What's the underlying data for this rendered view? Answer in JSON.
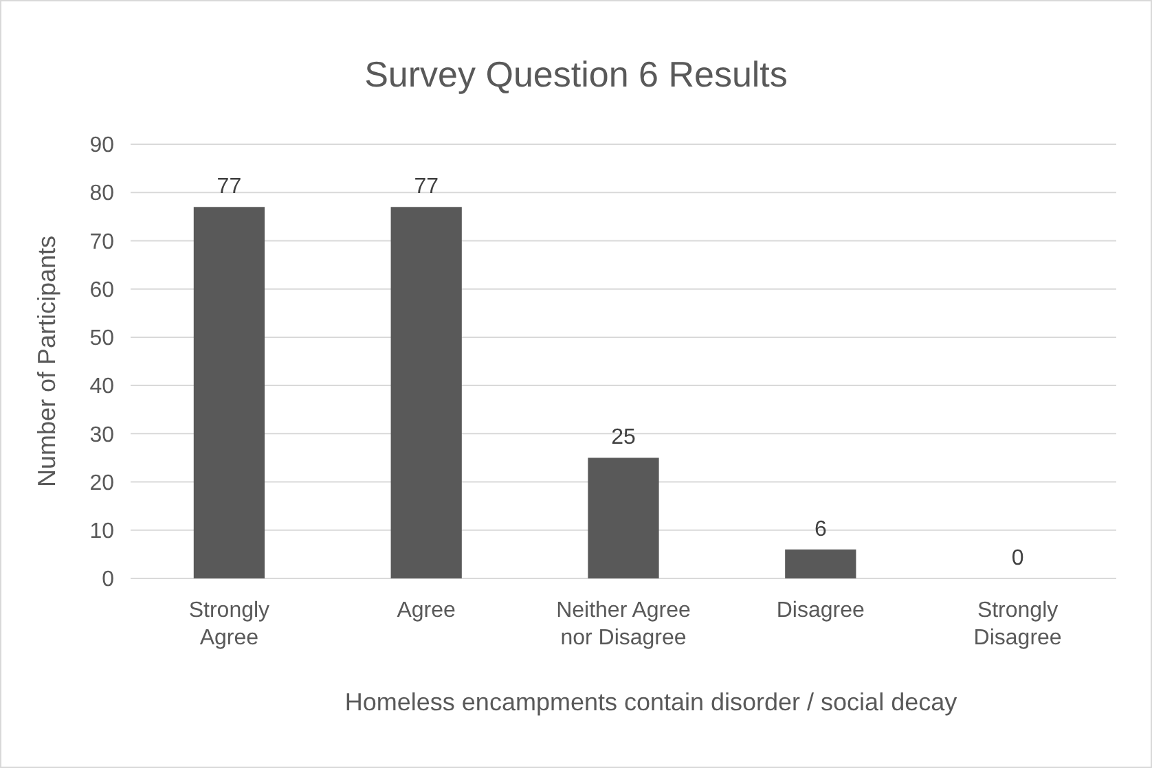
{
  "chart_data": {
    "type": "bar",
    "title": "Survey Question 6 Results",
    "xlabel": "Homeless encampments contain disorder / social decay",
    "ylabel": "Number of Participants",
    "categories": [
      "Strongly Agree",
      "Agree",
      "Neither Agree nor Disagree",
      "Disagree",
      "Strongly Disagree"
    ],
    "values": [
      77,
      77,
      25,
      6,
      0
    ],
    "color": "#595959",
    "ylim": [
      0,
      90
    ],
    "yticks": [
      0,
      10,
      20,
      30,
      40,
      50,
      60,
      70,
      80,
      90
    ],
    "grid": "y",
    "data_labels": true
  }
}
